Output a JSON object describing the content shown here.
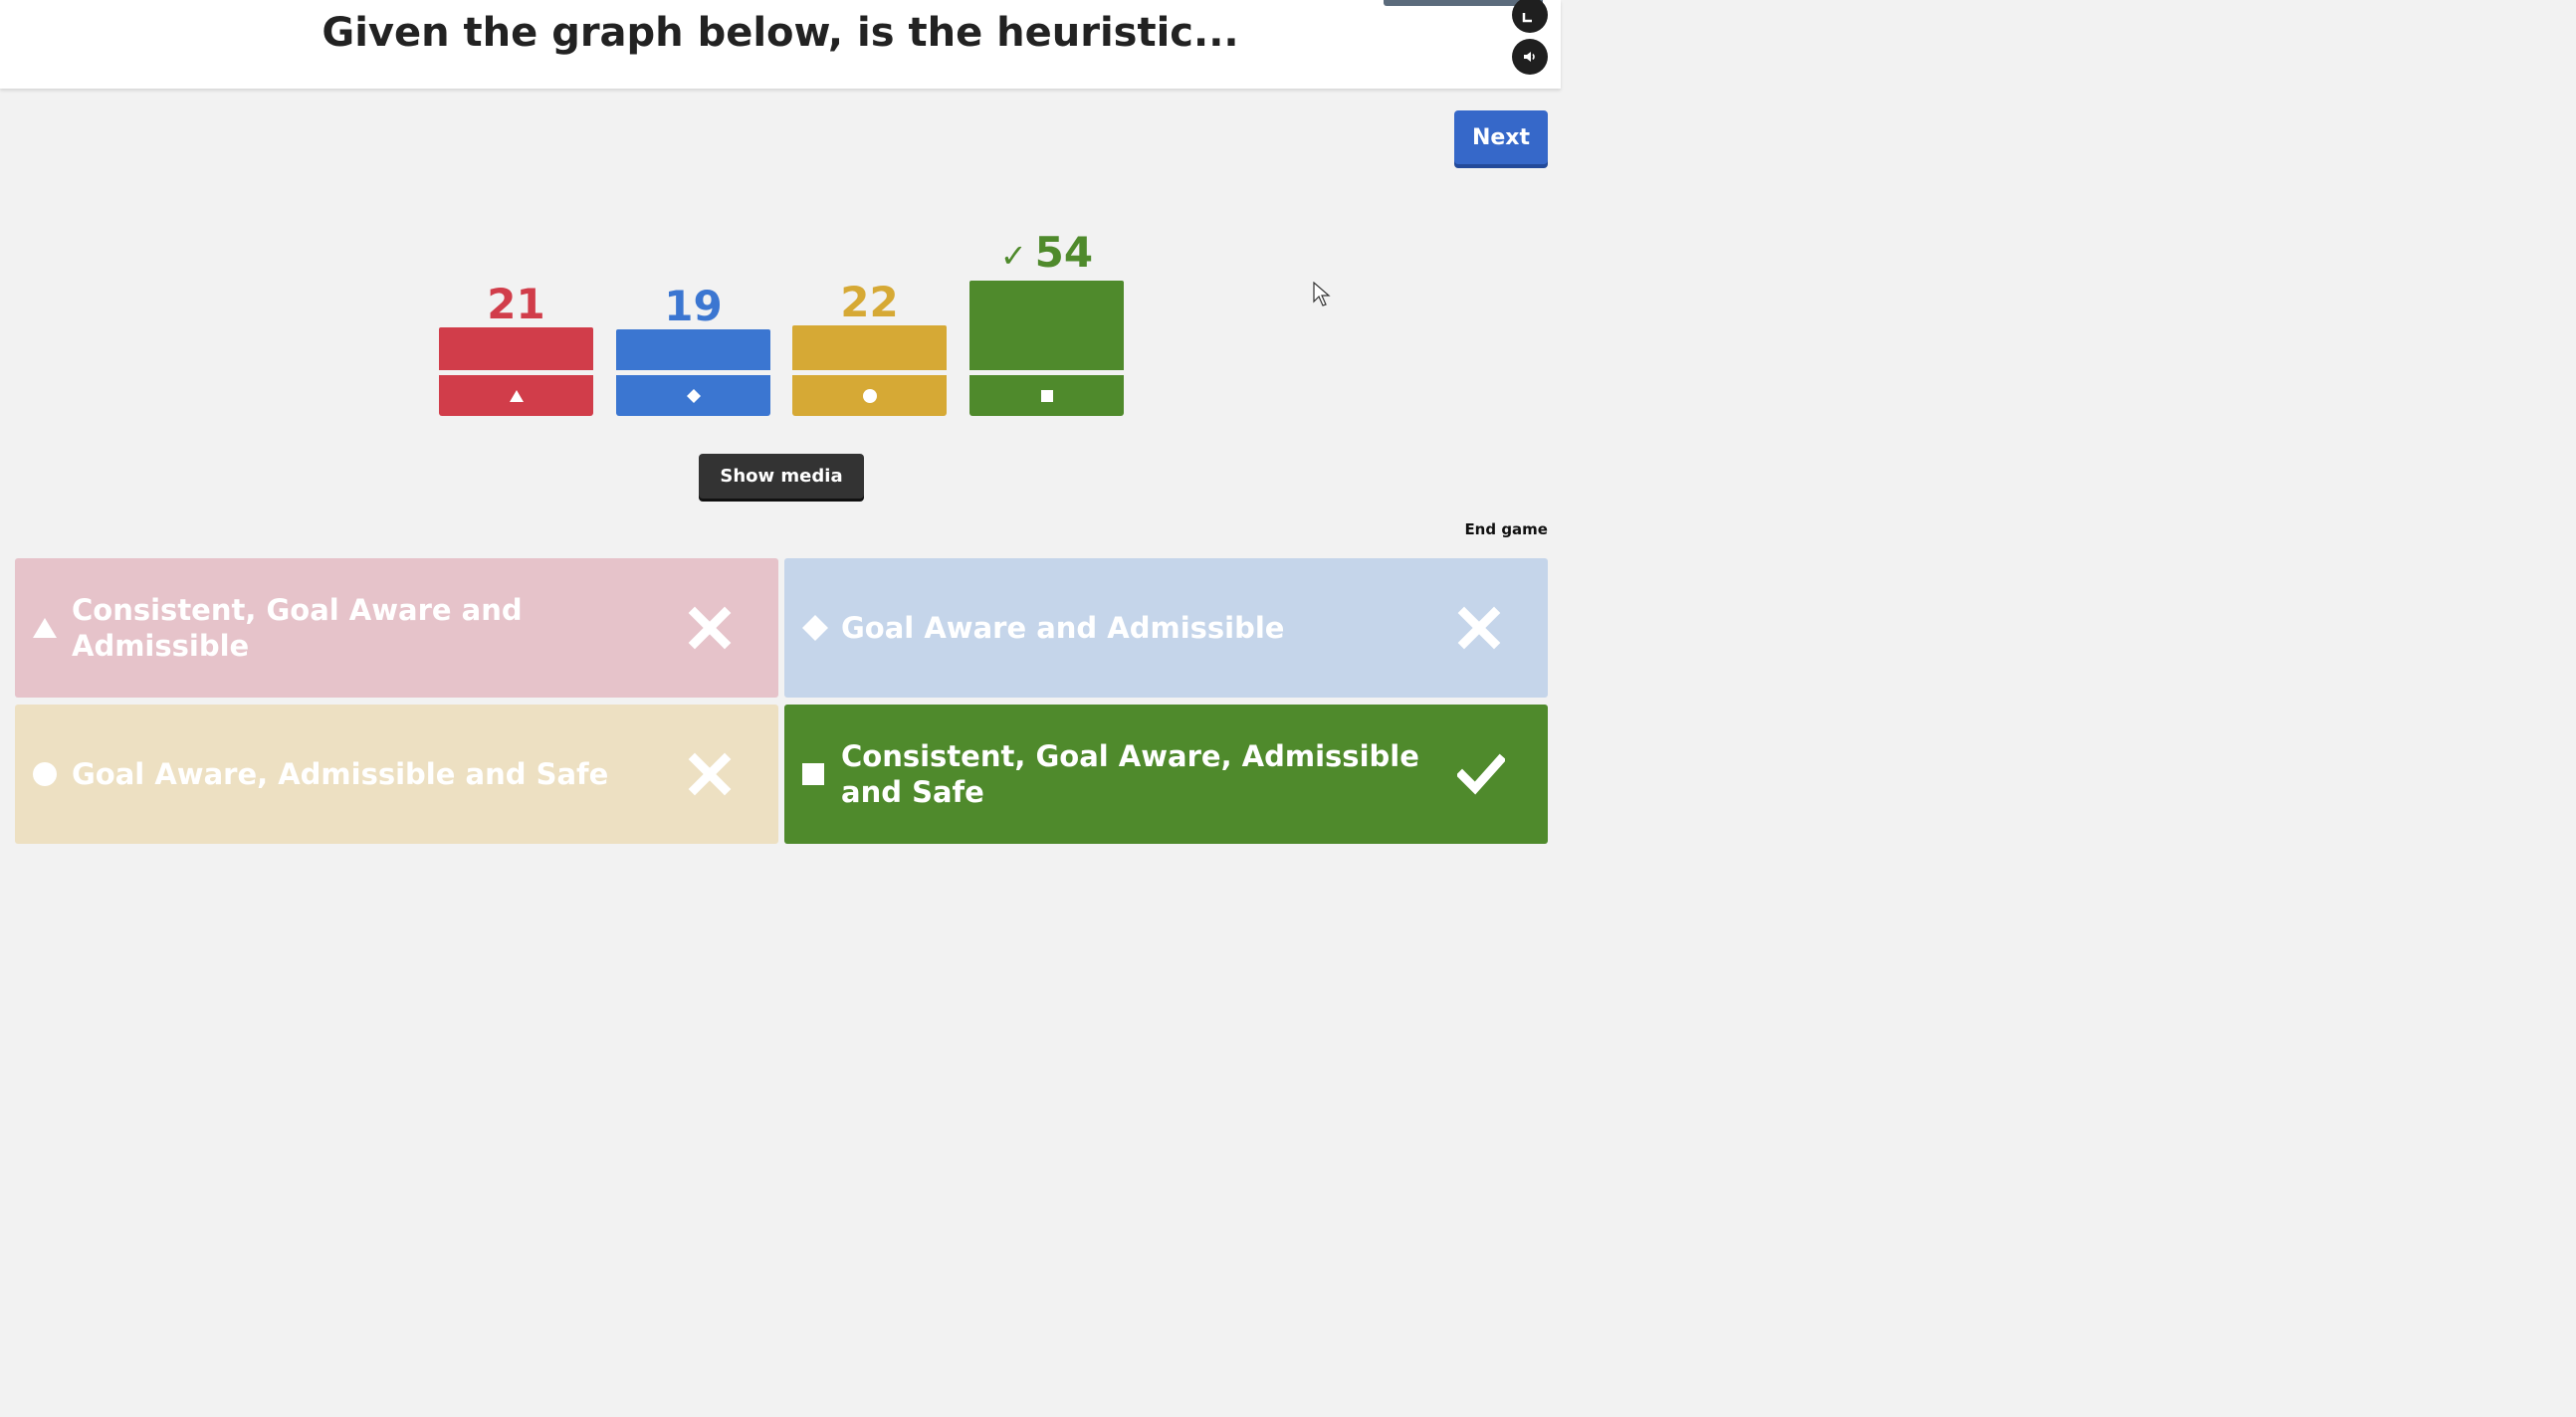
{
  "header": {
    "title": "Given the graph below, is the heuristic..."
  },
  "controls": {
    "next_label": "Next",
    "show_media_label": "Show media",
    "end_game_label": "End game",
    "fullscreen_icon": "fullscreen-icon",
    "sound_icon": "sound-icon"
  },
  "colors": {
    "red": "#d13d4a",
    "blue": "#3b76d1",
    "yellow": "#d6a935",
    "green": "#4f8a2c",
    "next_button": "#3668c9"
  },
  "results": [
    {
      "shape": "triangle",
      "count": "21",
      "color": "#d13d4a",
      "correct": false
    },
    {
      "shape": "diamond",
      "count": "19",
      "color": "#3b76d1",
      "correct": false
    },
    {
      "shape": "circle",
      "count": "22",
      "color": "#d6a935",
      "correct": false
    },
    {
      "shape": "square",
      "count": "54",
      "check": "✓",
      "color": "#4f8a2c",
      "correct": true
    }
  ],
  "answers": [
    {
      "shape": "triangle",
      "text": "Consistent, Goal Aware and Admissible",
      "correct": false,
      "color": "#e6c3ca",
      "text_color": "#ffffff"
    },
    {
      "shape": "diamond",
      "text": "Goal Aware and Admissible",
      "correct": false,
      "color": "#c5d5ea",
      "text_color": "#ffffff"
    },
    {
      "shape": "circle",
      "text": "Goal Aware, Admissible and Safe",
      "correct": false,
      "color": "#ede0c2",
      "text_color": "#ffffff"
    },
    {
      "shape": "square",
      "text": "Consistent, Goal Aware, Admissible and Safe",
      "correct": true,
      "color": "#4f8a2c",
      "text_color": "#ffffff"
    }
  ]
}
